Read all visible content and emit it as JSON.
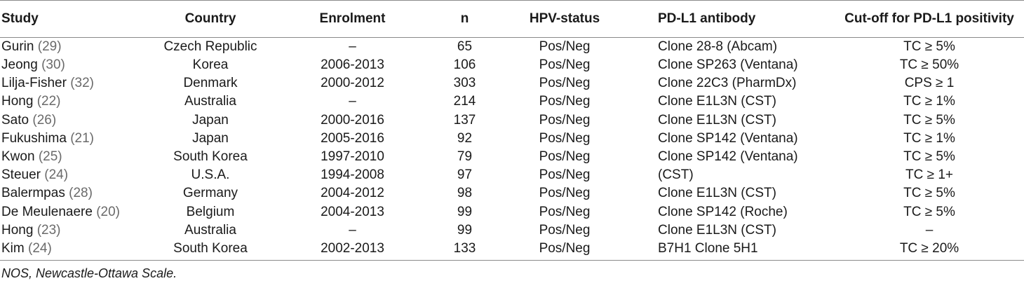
{
  "table": {
    "headers": [
      "Study",
      "Country",
      "Enrolment",
      "n",
      "HPV-status",
      "PD-L1 antibody",
      "Cut-off for PD-L1 positivity"
    ],
    "rows": [
      {
        "study": "Gurin",
        "ref": "29",
        "country": "Czech Republic",
        "enrolment": "–",
        "n": "65",
        "hpv": "Pos/Neg",
        "antibody": "Clone 28-8 (Abcam)",
        "cutoff": "TC ≥ 5%"
      },
      {
        "study": "Jeong",
        "ref": "30",
        "country": "Korea",
        "enrolment": "2006-2013",
        "n": "106",
        "hpv": "Pos/Neg",
        "antibody": "Clone SP263 (Ventana)",
        "cutoff": "TC ≥ 50%"
      },
      {
        "study": "Lilja-Fisher",
        "ref": "32",
        "country": "Denmark",
        "enrolment": "2000-2012",
        "n": "303",
        "hpv": "Pos/Neg",
        "antibody": "Clone 22C3 (PharmDx)",
        "cutoff": "CPS ≥ 1"
      },
      {
        "study": "Hong",
        "ref": "22",
        "country": "Australia",
        "enrolment": "–",
        "n": "214",
        "hpv": "Pos/Neg",
        "antibody": "Clone E1L3N (CST)",
        "cutoff": "TC ≥ 1%"
      },
      {
        "study": "Sato",
        "ref": "26",
        "country": "Japan",
        "enrolment": "2000-2016",
        "n": "137",
        "hpv": "Pos/Neg",
        "antibody": "Clone E1L3N (CST)",
        "cutoff": "TC ≥ 5%"
      },
      {
        "study": "Fukushima",
        "ref": "21",
        "country": "Japan",
        "enrolment": "2005-2016",
        "n": "92",
        "hpv": "Pos/Neg",
        "antibody": "Clone SP142 (Ventana)",
        "cutoff": "TC ≥ 1%"
      },
      {
        "study": "Kwon",
        "ref": "25",
        "country": "South Korea",
        "enrolment": "1997-2010",
        "n": "79",
        "hpv": "Pos/Neg",
        "antibody": "Clone SP142 (Ventana)",
        "cutoff": "TC ≥ 5%"
      },
      {
        "study": "Steuer",
        "ref": "24",
        "country": "U.S.A.",
        "enrolment": "1994-2008",
        "n": "97",
        "hpv": "Pos/Neg",
        "antibody": "(CST)",
        "cutoff": "TC ≥ 1+"
      },
      {
        "study": "Balermpas",
        "ref": "28",
        "country": "Germany",
        "enrolment": "2004-2012",
        "n": "98",
        "hpv": "Pos/Neg",
        "antibody": "Clone E1L3N (CST)",
        "cutoff": "TC ≥ 5%"
      },
      {
        "study": "De Meulenaere",
        "ref": "20",
        "country": "Belgium",
        "enrolment": "2004-2013",
        "n": "99",
        "hpv": "Pos/Neg",
        "antibody": "Clone SP142 (Roche)",
        "cutoff": "TC ≥ 5%"
      },
      {
        "study": "Hong",
        "ref": "23",
        "country": "Australia",
        "enrolment": "–",
        "n": "99",
        "hpv": "Pos/Neg",
        "antibody": "Clone E1L3N (CST)",
        "cutoff": "–"
      },
      {
        "study": "Kim",
        "ref": "24",
        "country": "South Korea",
        "enrolment": "2002-2013",
        "n": "133",
        "hpv": "Pos/Neg",
        "antibody": "B7H1 Clone 5H1",
        "cutoff": "TC ≥ 20%"
      }
    ]
  },
  "footnote": "NOS, Newcastle-Ottawa Scale."
}
